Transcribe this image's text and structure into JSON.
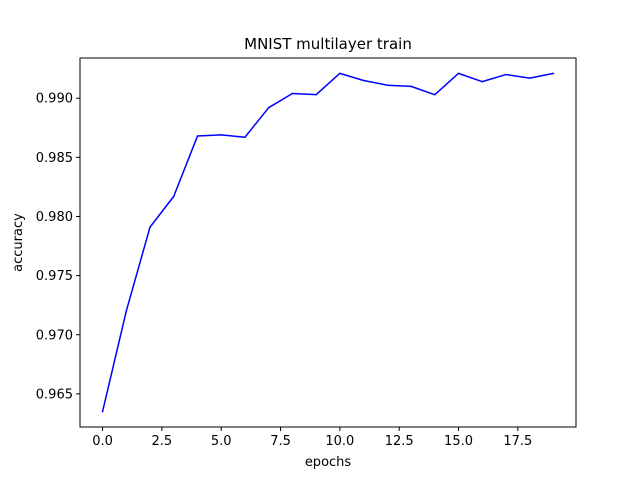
{
  "chart_data": {
    "type": "line",
    "title": "MNIST multilayer train",
    "xlabel": "epochs",
    "ylabel": "accuracy",
    "xlim": [
      -0.95,
      19.95
    ],
    "ylim": [
      0.9622,
      0.9934
    ],
    "x_ticks": [
      0.0,
      2.5,
      5.0,
      7.5,
      10.0,
      12.5,
      15.0,
      17.5
    ],
    "x_tick_labels": [
      "0.0",
      "2.5",
      "5.0",
      "7.5",
      "10.0",
      "12.5",
      "15.0",
      "17.5"
    ],
    "y_ticks": [
      0.965,
      0.97,
      0.975,
      0.98,
      0.985,
      0.99
    ],
    "y_tick_labels": [
      "0.965",
      "0.970",
      "0.975",
      "0.980",
      "0.985",
      "0.990"
    ],
    "grid": false,
    "series": [
      {
        "color": "#0000ff",
        "x": [
          0,
          1,
          2,
          3,
          4,
          5,
          6,
          7,
          8,
          9,
          10,
          11,
          12,
          13,
          14,
          15,
          16,
          17,
          18,
          19
        ],
        "values": [
          0.9635,
          0.972,
          0.9791,
          0.9817,
          0.9868,
          0.9869,
          0.9867,
          0.9892,
          0.9904,
          0.9903,
          0.9921,
          0.9915,
          0.9911,
          0.991,
          0.9903,
          0.9921,
          0.9914,
          0.992,
          0.9917,
          0.9921
        ]
      }
    ]
  }
}
